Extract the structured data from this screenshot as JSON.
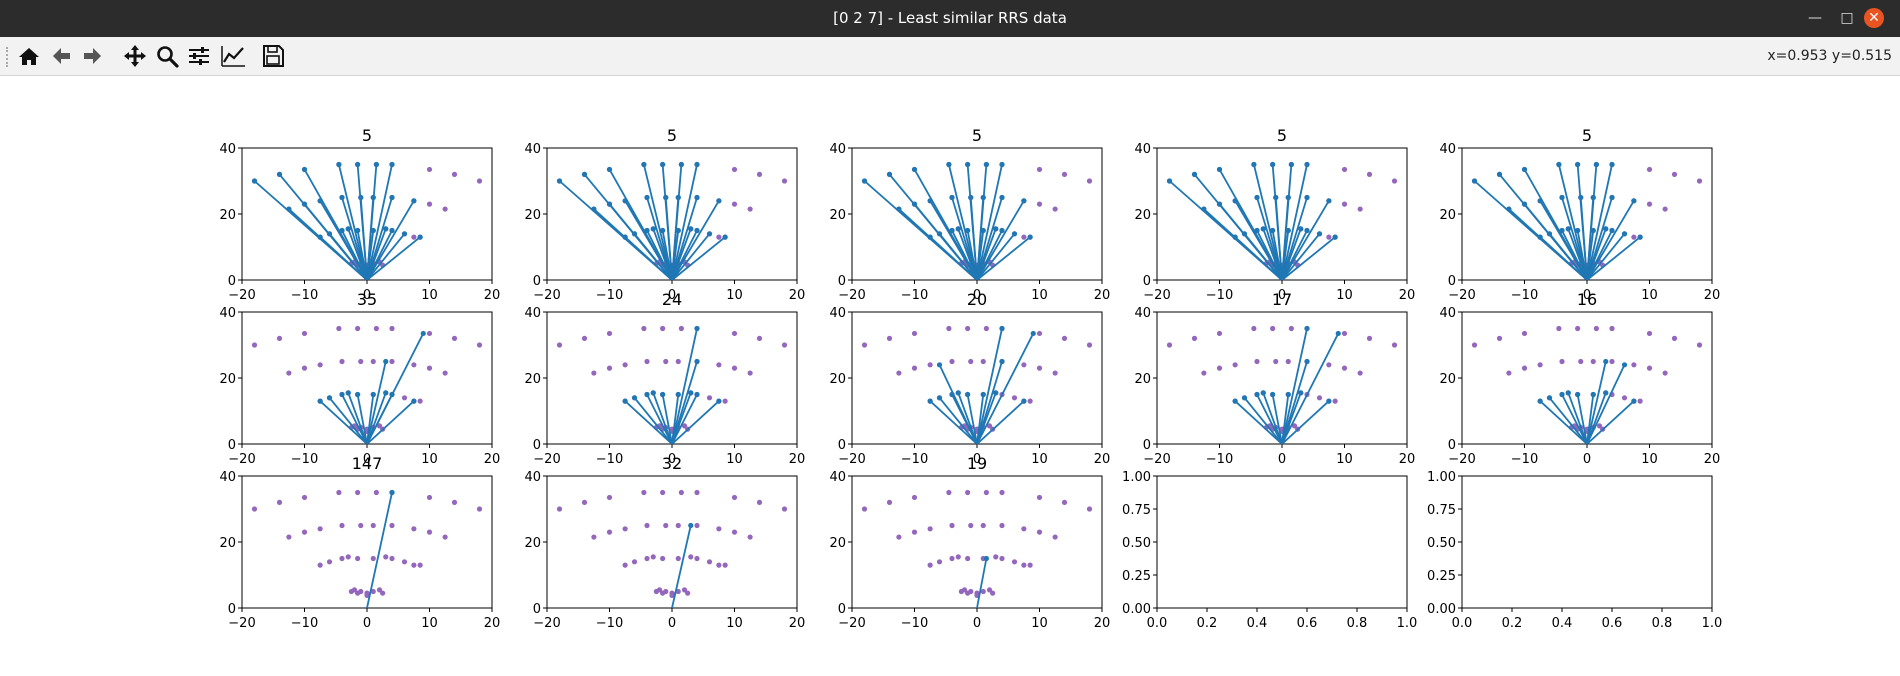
{
  "window": {
    "title": "[0 2 7] - Least similar RRS data",
    "minimize_icon": "minimize-icon",
    "maximize_icon": "maximize-icon",
    "close_icon": "close-icon"
  },
  "toolbar": {
    "buttons": [
      {
        "name": "home-button",
        "icon": "home-icon"
      },
      {
        "name": "back-button",
        "icon": "arrow-left-icon"
      },
      {
        "name": "forward-button",
        "icon": "arrow-right-icon"
      },
      {
        "name": "pan-button",
        "icon": "move-icon"
      },
      {
        "name": "zoom-button",
        "icon": "magnifier-icon"
      },
      {
        "name": "subplots-button",
        "icon": "sliders-icon"
      },
      {
        "name": "customize-button",
        "icon": "line-chart-icon"
      },
      {
        "name": "save-button",
        "icon": "floppy-disk-icon"
      }
    ],
    "coords": "x=0.953 y=0.515"
  },
  "colors": {
    "line": "#1f77b4",
    "point": "#9467bd"
  },
  "chart_data": {
    "type": "scatter",
    "grid": "3x5",
    "xlim": [
      -20,
      20
    ],
    "ylim": [
      0,
      40
    ],
    "xticks": [
      "−20",
      "−10",
      "0",
      "10",
      "20"
    ],
    "yticks": [
      "0",
      "20",
      "40"
    ],
    "empty_xticks": [
      "0.0",
      "0.2",
      "0.4",
      "0.6",
      "0.8",
      "1.0"
    ],
    "empty_yticks": [
      "0.00",
      "0.25",
      "0.50",
      "0.75",
      "1.00"
    ],
    "points": [
      [
        -18,
        30
      ],
      [
        -14,
        32
      ],
      [
        -12.5,
        21.5
      ],
      [
        -10,
        33.5
      ],
      [
        -10,
        23
      ],
      [
        -7.5,
        24
      ],
      [
        -7.5,
        13
      ],
      [
        -6,
        14
      ],
      [
        -4.5,
        35
      ],
      [
        -4,
        25
      ],
      [
        -4,
        15
      ],
      [
        -3,
        15.5
      ],
      [
        -2.5,
        5
      ],
      [
        -2,
        5.5
      ],
      [
        -1.5,
        4.5
      ],
      [
        -1,
        5
      ],
      [
        -1.5,
        35
      ],
      [
        -1,
        25
      ],
      [
        -1.5,
        15
      ],
      [
        0,
        4.5
      ],
      [
        0,
        3.8
      ],
      [
        1.5,
        35
      ],
      [
        1,
        25
      ],
      [
        1,
        15
      ],
      [
        1,
        5
      ],
      [
        2,
        5.5
      ],
      [
        2.5,
        4.5
      ],
      [
        3,
        15.5
      ],
      [
        4,
        25
      ],
      [
        4,
        15
      ],
      [
        4,
        35
      ],
      [
        7.5,
        24
      ],
      [
        7.5,
        13
      ],
      [
        6,
        14
      ],
      [
        10,
        33.5
      ],
      [
        10,
        23
      ],
      [
        12.5,
        21.5
      ],
      [
        14,
        32
      ],
      [
        18,
        30
      ],
      [
        8.5,
        13
      ]
    ],
    "plots": [
      {
        "title": "5",
        "lines": [
          [
            -18,
            30
          ],
          [
            -14,
            32
          ],
          [
            -12.5,
            21.5
          ],
          [
            -10,
            33.5
          ],
          [
            -10,
            23
          ],
          [
            -7.5,
            24
          ],
          [
            -7.5,
            13
          ],
          [
            -6,
            14
          ],
          [
            -4.5,
            35
          ],
          [
            -4,
            25
          ],
          [
            -4,
            15
          ],
          [
            -3,
            15.5
          ],
          [
            -1.5,
            35
          ],
          [
            -1,
            25
          ],
          [
            -1.5,
            15
          ],
          [
            1.5,
            35
          ],
          [
            1,
            25
          ],
          [
            1,
            15
          ],
          [
            3,
            15.5
          ],
          [
            4,
            25
          ],
          [
            4,
            15
          ],
          [
            4,
            35
          ],
          [
            7.5,
            24
          ],
          [
            6,
            14
          ],
          [
            8.5,
            13
          ]
        ]
      },
      {
        "title": "5",
        "lines": [
          [
            -18,
            30
          ],
          [
            -14,
            32
          ],
          [
            -12.5,
            21.5
          ],
          [
            -10,
            33.5
          ],
          [
            -10,
            23
          ],
          [
            -7.5,
            24
          ],
          [
            -7.5,
            13
          ],
          [
            -6,
            14
          ],
          [
            -4.5,
            35
          ],
          [
            -4,
            25
          ],
          [
            -4,
            15
          ],
          [
            -3,
            15.5
          ],
          [
            -1.5,
            35
          ],
          [
            -1,
            25
          ],
          [
            -1.5,
            15
          ],
          [
            1.5,
            35
          ],
          [
            1,
            25
          ],
          [
            1,
            15
          ],
          [
            3,
            15.5
          ],
          [
            4,
            25
          ],
          [
            4,
            15
          ],
          [
            4,
            35
          ],
          [
            7.5,
            24
          ],
          [
            6,
            14
          ],
          [
            8.5,
            13
          ]
        ]
      },
      {
        "title": "5",
        "lines": [
          [
            -18,
            30
          ],
          [
            -14,
            32
          ],
          [
            -12.5,
            21.5
          ],
          [
            -10,
            33.5
          ],
          [
            -10,
            23
          ],
          [
            -7.5,
            24
          ],
          [
            -7.5,
            13
          ],
          [
            -6,
            14
          ],
          [
            -4.5,
            35
          ],
          [
            -4,
            25
          ],
          [
            -4,
            15
          ],
          [
            -3,
            15.5
          ],
          [
            -1.5,
            35
          ],
          [
            -1,
            25
          ],
          [
            -1.5,
            15
          ],
          [
            1.5,
            35
          ],
          [
            1,
            25
          ],
          [
            1,
            15
          ],
          [
            3,
            15.5
          ],
          [
            4,
            25
          ],
          [
            4,
            15
          ],
          [
            4,
            35
          ],
          [
            7.5,
            24
          ],
          [
            6,
            14
          ],
          [
            8.5,
            13
          ]
        ]
      },
      {
        "title": "5",
        "lines": [
          [
            -18,
            30
          ],
          [
            -14,
            32
          ],
          [
            -12.5,
            21.5
          ],
          [
            -10,
            33.5
          ],
          [
            -10,
            23
          ],
          [
            -7.5,
            24
          ],
          [
            -7.5,
            13
          ],
          [
            -6,
            14
          ],
          [
            -4.5,
            35
          ],
          [
            -4,
            25
          ],
          [
            -4,
            15
          ],
          [
            -3,
            15.5
          ],
          [
            -1.5,
            35
          ],
          [
            -1,
            25
          ],
          [
            -1.5,
            15
          ],
          [
            1.5,
            35
          ],
          [
            1,
            25
          ],
          [
            1,
            15
          ],
          [
            3,
            15.5
          ],
          [
            4,
            25
          ],
          [
            4,
            15
          ],
          [
            4,
            35
          ],
          [
            7.5,
            24
          ],
          [
            6,
            14
          ],
          [
            8.5,
            13
          ]
        ]
      },
      {
        "title": "5",
        "lines": [
          [
            -18,
            30
          ],
          [
            -14,
            32
          ],
          [
            -12.5,
            21.5
          ],
          [
            -10,
            33.5
          ],
          [
            -10,
            23
          ],
          [
            -7.5,
            24
          ],
          [
            -7.5,
            13
          ],
          [
            -6,
            14
          ],
          [
            -4.5,
            35
          ],
          [
            -4,
            25
          ],
          [
            -4,
            15
          ],
          [
            -3,
            15.5
          ],
          [
            -1.5,
            35
          ],
          [
            -1,
            25
          ],
          [
            -1.5,
            15
          ],
          [
            1.5,
            35
          ],
          [
            1,
            25
          ],
          [
            1,
            15
          ],
          [
            3,
            15.5
          ],
          [
            4,
            25
          ],
          [
            4,
            15
          ],
          [
            4,
            35
          ],
          [
            7.5,
            24
          ],
          [
            6,
            14
          ],
          [
            8.5,
            13
          ]
        ]
      },
      {
        "title": "35",
        "lines": [
          [
            -7.5,
            13
          ],
          [
            -6,
            14
          ],
          [
            -4,
            15
          ],
          [
            -3,
            15.5
          ],
          [
            -1.5,
            15
          ],
          [
            1,
            15
          ],
          [
            3,
            15.5
          ],
          [
            3,
            25
          ],
          [
            4,
            15
          ],
          [
            9,
            33.5
          ],
          [
            7.5,
            13
          ]
        ]
      },
      {
        "title": "24",
        "lines": [
          [
            -7.5,
            13
          ],
          [
            -6,
            14
          ],
          [
            -4,
            15
          ],
          [
            -3,
            15.5
          ],
          [
            -1.5,
            15
          ],
          [
            1,
            15
          ],
          [
            3,
            15.5
          ],
          [
            4,
            35
          ],
          [
            4,
            25
          ],
          [
            4,
            15
          ],
          [
            7.5,
            13
          ]
        ]
      },
      {
        "title": "20",
        "lines": [
          [
            -7.5,
            13
          ],
          [
            -6,
            14
          ],
          [
            -6,
            24
          ],
          [
            -4,
            15
          ],
          [
            -3,
            15.5
          ],
          [
            -1.5,
            15
          ],
          [
            1,
            15
          ],
          [
            3,
            15.5
          ],
          [
            4,
            35
          ],
          [
            4,
            25
          ],
          [
            9,
            33.5
          ],
          [
            7.5,
            13
          ]
        ]
      },
      {
        "title": "17",
        "lines": [
          [
            -7.5,
            13
          ],
          [
            -6,
            14
          ],
          [
            -4,
            15
          ],
          [
            -3,
            15.5
          ],
          [
            -1.5,
            15
          ],
          [
            1,
            15
          ],
          [
            3,
            15.5
          ],
          [
            4,
            35
          ],
          [
            4,
            25
          ],
          [
            9,
            33.5
          ],
          [
            7.5,
            13
          ]
        ]
      },
      {
        "title": "16",
        "lines": [
          [
            -7.5,
            13
          ],
          [
            -6,
            14
          ],
          [
            -4,
            15
          ],
          [
            -3,
            15.5
          ],
          [
            -1.5,
            15
          ],
          [
            1,
            15
          ],
          [
            3,
            15.5
          ],
          [
            3,
            25
          ],
          [
            6,
            24
          ],
          [
            7.5,
            13
          ]
        ]
      },
      {
        "title": "147",
        "lines": [
          [
            4,
            35
          ]
        ]
      },
      {
        "title": "32",
        "lines": [
          [
            3,
            25
          ]
        ]
      },
      {
        "title": "19",
        "lines": [
          [
            1.5,
            15
          ]
        ]
      },
      {
        "title": "",
        "empty": true,
        "lines": []
      },
      {
        "title": "",
        "empty": true,
        "lines": []
      }
    ]
  }
}
